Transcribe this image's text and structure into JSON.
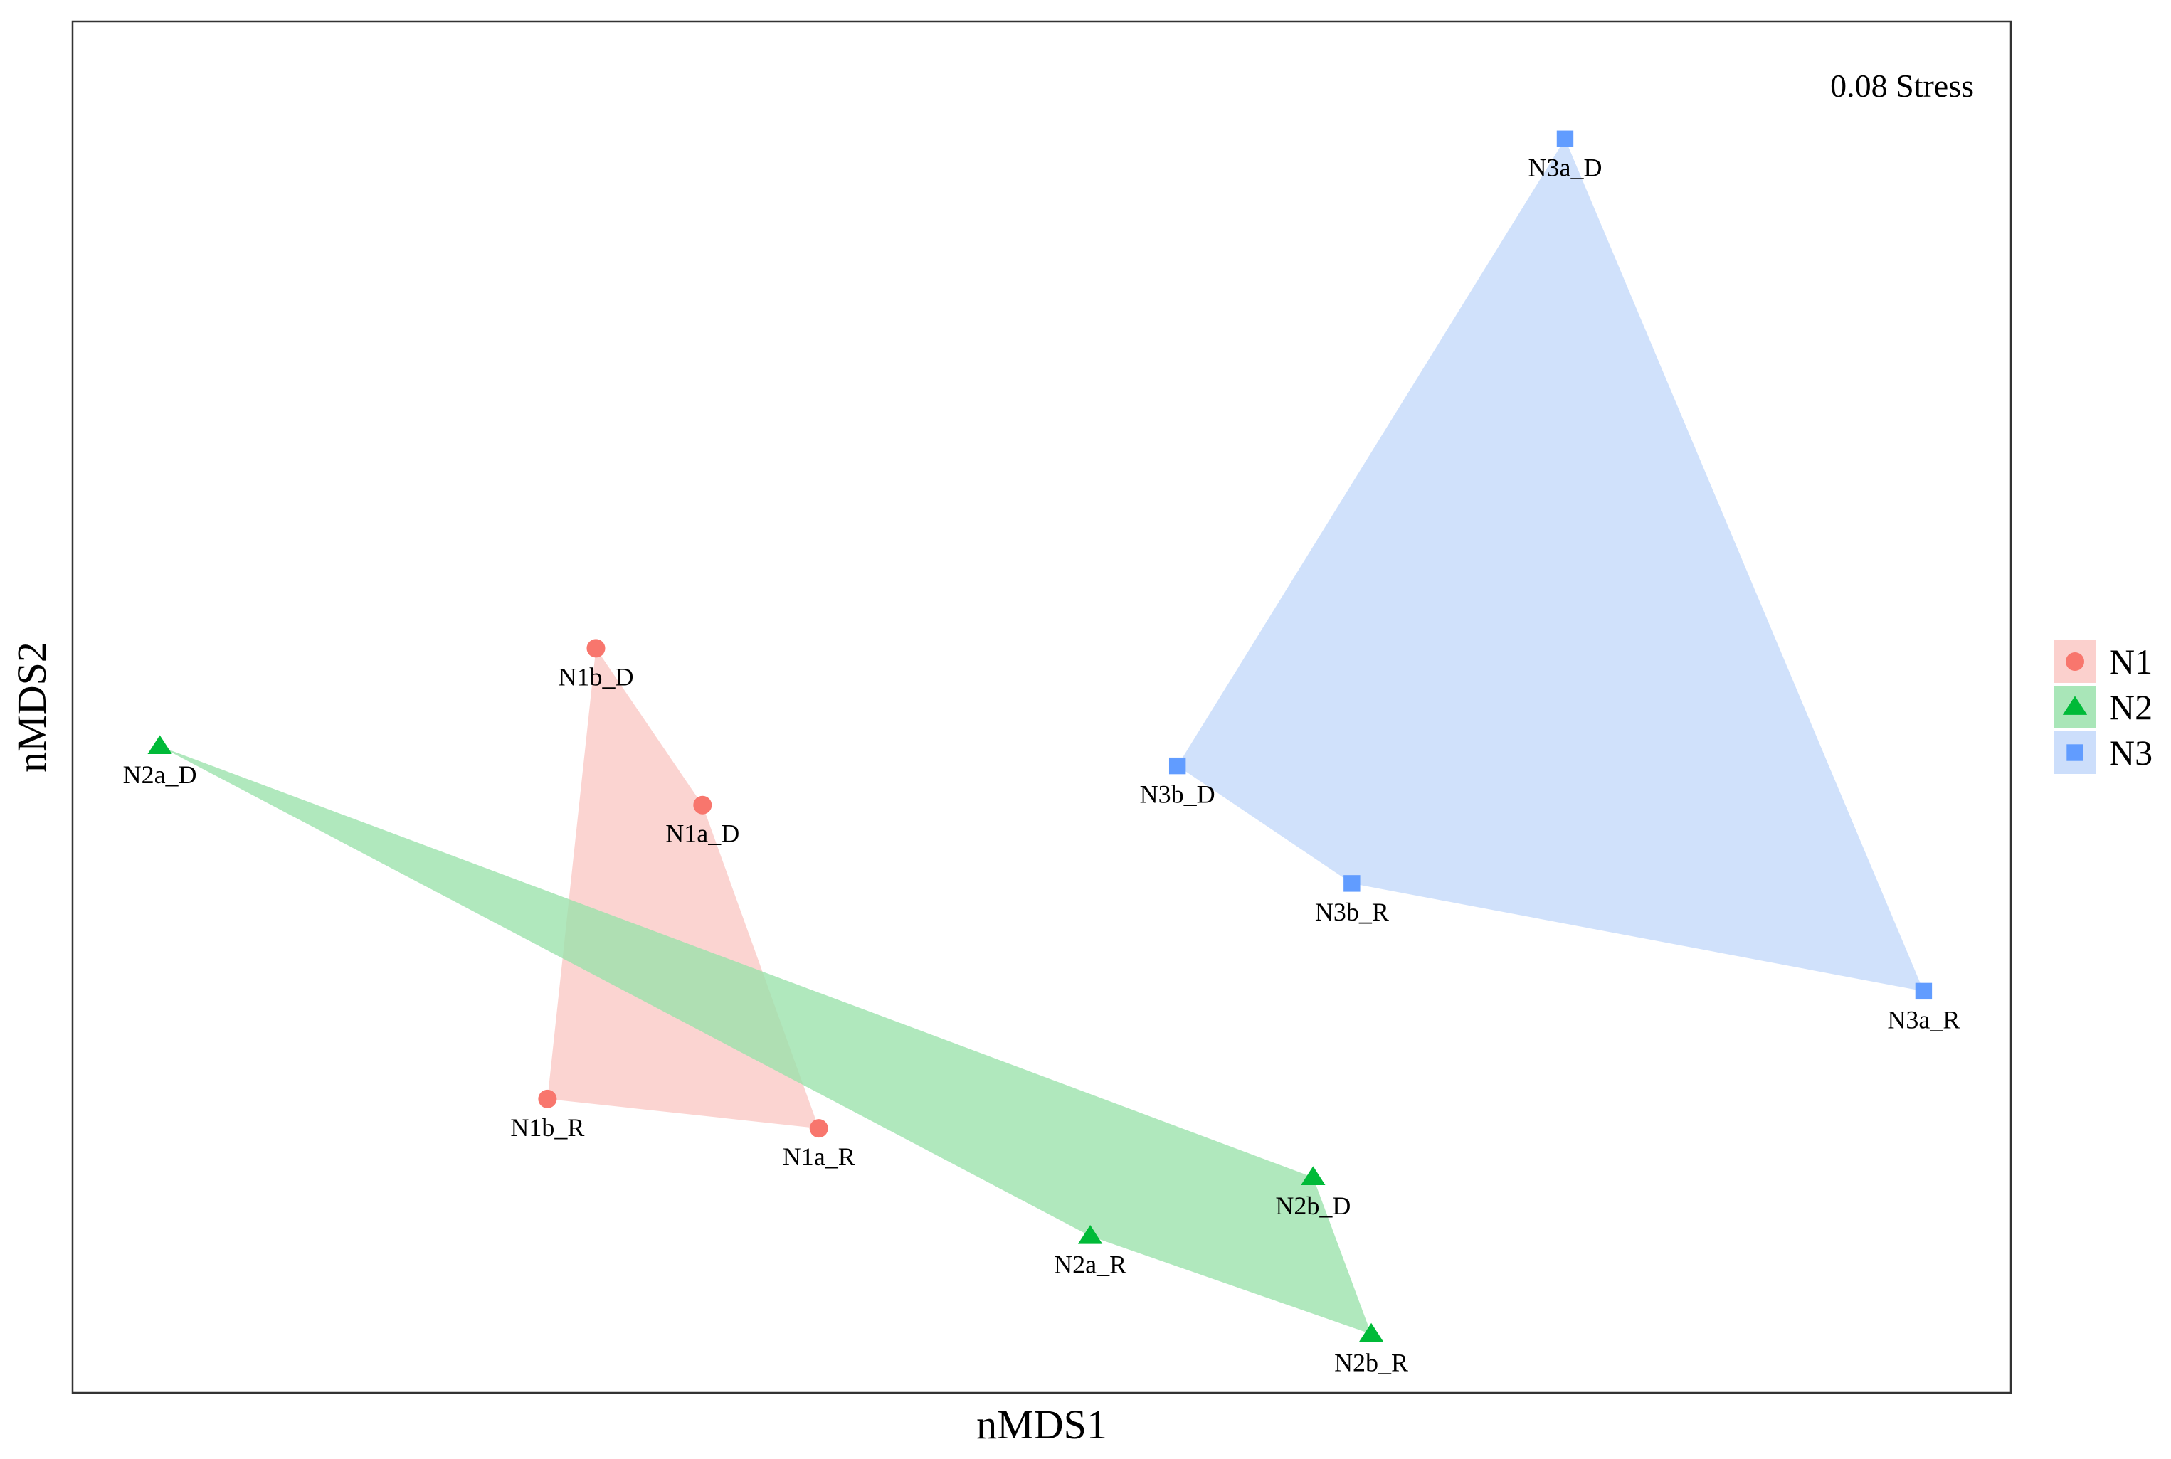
{
  "chart_data": {
    "type": "scatter",
    "title": "",
    "xlabel": "nMDS1",
    "ylabel": "nMDS2",
    "stress_label": "0.08 Stress",
    "xlim": [
      -1.0,
      1.0
    ],
    "ylim": [
      -0.7,
      0.7
    ],
    "grid": false,
    "legend_position": "right",
    "series": [
      {
        "name": "N1",
        "color": "#F8766D",
        "fill": "#FAC8C4",
        "shape": "circle",
        "points": [
          {
            "label": "N1b_D",
            "x": -0.46,
            "y": 0.06
          },
          {
            "label": "N1a_D",
            "x": -0.35,
            "y": -0.1
          },
          {
            "label": "N1b_R",
            "x": -0.51,
            "y": -0.4
          },
          {
            "label": "N1a_R",
            "x": -0.23,
            "y": -0.43
          }
        ]
      },
      {
        "name": "N2",
        "color": "#00BA38",
        "fill": "#9AE2AB",
        "shape": "triangle",
        "points": [
          {
            "label": "N2a_D",
            "x": -0.91,
            "y": -0.04
          },
          {
            "label": "N2a_R",
            "x": 0.05,
            "y": -0.54
          },
          {
            "label": "N2b_D",
            "x": 0.28,
            "y": -0.48
          },
          {
            "label": "N2b_R",
            "x": 0.34,
            "y": -0.64
          }
        ]
      },
      {
        "name": "N3",
        "color": "#619CFF",
        "fill": "#C3D8FA",
        "shape": "square",
        "points": [
          {
            "label": "N3a_D",
            "x": 0.54,
            "y": 0.58
          },
          {
            "label": "N3b_D",
            "x": 0.14,
            "y": -0.06
          },
          {
            "label": "N3b_R",
            "x": 0.32,
            "y": -0.18
          },
          {
            "label": "N3a_R",
            "x": 0.91,
            "y": -0.29
          }
        ]
      }
    ]
  }
}
